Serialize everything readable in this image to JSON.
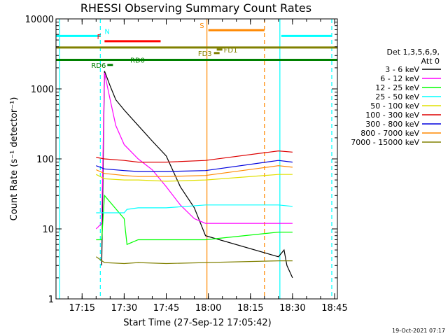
{
  "chart_data": {
    "type": "line",
    "title": "RHESSI Observing Summary Count Rates",
    "xlabel": "Start Time (27-Sep-12 17:05:42)",
    "ylabel": "Count Rate (s⁻¹ detector⁻¹)",
    "timestamp": "19-Oct-2021 07:17",
    "y_scale": "log",
    "ylim": [
      1,
      10000
    ],
    "xlim": [
      "17:05:42",
      "18:46:00"
    ],
    "x_ticks": [
      "17:15",
      "17:30",
      "17:45",
      "18:00",
      "18:15",
      "18:30",
      "18:45"
    ],
    "y_ticks": [
      "1",
      "10",
      "100",
      "1000",
      "10000"
    ],
    "grid": false,
    "legend_position": "right",
    "legend_header": [
      "Det 1,3,5,6,9,",
      "Att 0"
    ],
    "series": [
      {
        "name": "3 - 6 keV",
        "color": "#000000",
        "x": [
          "17:22",
          "17:23",
          "17:25",
          "17:27",
          "17:30",
          "17:35",
          "17:40",
          "17:45",
          "17:50",
          "17:55",
          "17:59",
          "18:25",
          "18:27",
          "18:28",
          "18:30"
        ],
        "y": [
          3,
          1800,
          1100,
          700,
          500,
          300,
          180,
          110,
          40,
          20,
          8,
          4,
          5,
          3,
          2
        ]
      },
      {
        "name": "6 - 12 keV",
        "color": "#ff00ff",
        "x": [
          "17:20",
          "17:22",
          "17:23",
          "17:25",
          "17:27",
          "17:30",
          "17:35",
          "17:40",
          "17:45",
          "17:50",
          "17:55",
          "17:59",
          "18:25",
          "18:27",
          "18:28",
          "18:30"
        ],
        "y": [
          10,
          12,
          1700,
          700,
          300,
          160,
          100,
          70,
          40,
          22,
          14,
          12,
          12,
          12,
          12,
          12
        ]
      },
      {
        "name": "12 - 25 keV",
        "color": "#00ff00",
        "x": [
          "17:20",
          "17:22",
          "17:23",
          "17:30",
          "17:31",
          "17:35",
          "17:45",
          "17:59",
          "18:25",
          "18:30"
        ],
        "y": [
          7,
          7,
          30,
          14,
          6,
          7,
          7,
          7,
          9,
          9
        ]
      },
      {
        "name": "25 - 50 keV",
        "color": "#00ffff",
        "x": [
          "17:20",
          "17:23",
          "17:30",
          "17:31",
          "17:35",
          "17:45",
          "17:59",
          "18:25",
          "18:30"
        ],
        "y": [
          17,
          17,
          17,
          19,
          20,
          20,
          22,
          22,
          21
        ]
      },
      {
        "name": "50 - 100 keV",
        "color": "#e0e000",
        "x": [
          "17:20",
          "17:23",
          "17:30",
          "17:35",
          "17:45",
          "17:59",
          "18:25",
          "18:30"
        ],
        "y": [
          60,
          52,
          50,
          50,
          48,
          50,
          60,
          60
        ]
      },
      {
        "name": "100 - 300 keV",
        "color": "#dd0000",
        "x": [
          "17:20",
          "17:23",
          "17:30",
          "17:35",
          "17:45",
          "17:59",
          "18:25",
          "18:30"
        ],
        "y": [
          105,
          100,
          95,
          90,
          90,
          95,
          130,
          125
        ]
      },
      {
        "name": "300 - 800 keV",
        "color": "#0000dd",
        "x": [
          "17:20",
          "17:23",
          "17:30",
          "17:35",
          "17:45",
          "17:59",
          "18:25",
          "18:30"
        ],
        "y": [
          80,
          72,
          68,
          66,
          66,
          68,
          95,
          90
        ]
      },
      {
        "name": "800 - 7000 keV",
        "color": "#ff8800",
        "x": [
          "17:20",
          "17:23",
          "17:30",
          "17:35",
          "17:45",
          "17:59",
          "18:25",
          "18:30"
        ],
        "y": [
          70,
          62,
          58,
          56,
          56,
          58,
          80,
          76
        ]
      },
      {
        "name": "7000 - 15000 keV",
        "color": "#808000",
        "x": [
          "17:20",
          "17:23",
          "17:30",
          "17:35",
          "17:45",
          "17:59",
          "18:25",
          "18:30"
        ],
        "y": [
          4,
          3.3,
          3.2,
          3.3,
          3.2,
          3.3,
          3.5,
          3.5
        ]
      }
    ],
    "flags": [
      {
        "label": "N",
        "color": "#00ffff",
        "segments": [
          [
            "17:05:42",
            "17:21:30"
          ],
          [
            "18:26",
            "18:44"
          ]
        ],
        "y": 5700
      },
      {
        "label": "F",
        "color": "#ff0000",
        "segments": [
          [
            "17:23",
            "17:43"
          ]
        ],
        "y": 4800
      },
      {
        "label": "S",
        "color": "#ff8800",
        "segments": [
          [
            "18:00",
            "18:20"
          ]
        ],
        "y": 6900
      },
      {
        "label": "",
        "color": "#808000",
        "segments": [
          [
            "17:05:42",
            "18:46"
          ]
        ],
        "y": 3900
      },
      {
        "label": "FD1",
        "color": "#808000",
        "segments": [
          [
            "18:03",
            "18:05"
          ]
        ],
        "y": 3650
      },
      {
        "label": "FD3",
        "color": "#808000",
        "segments": [
          [
            "18:02",
            "18:04"
          ]
        ],
        "y": 3250
      },
      {
        "label": "RD0",
        "color": "#008000",
        "segments": [
          [
            "17:05:42",
            "18:46"
          ]
        ],
        "y": 2600
      },
      {
        "label": "RD6",
        "color": "#008000",
        "segments": [
          [
            "17:24",
            "17:26"
          ]
        ],
        "y": 2200
      }
    ],
    "vertical_lines": [
      {
        "x": "17:07",
        "color": "#00ffff",
        "style": "solid"
      },
      {
        "x": "17:21:30",
        "color": "#00ffff",
        "style": "dashed"
      },
      {
        "x": "17:59:30",
        "color": "#ff8800",
        "style": "solid"
      },
      {
        "x": "18:20",
        "color": "#ff8800",
        "style": "dashed"
      },
      {
        "x": "18:25:30",
        "color": "#00ffff",
        "style": "solid"
      },
      {
        "x": "18:44",
        "color": "#00ffff",
        "style": "dashed"
      }
    ]
  }
}
